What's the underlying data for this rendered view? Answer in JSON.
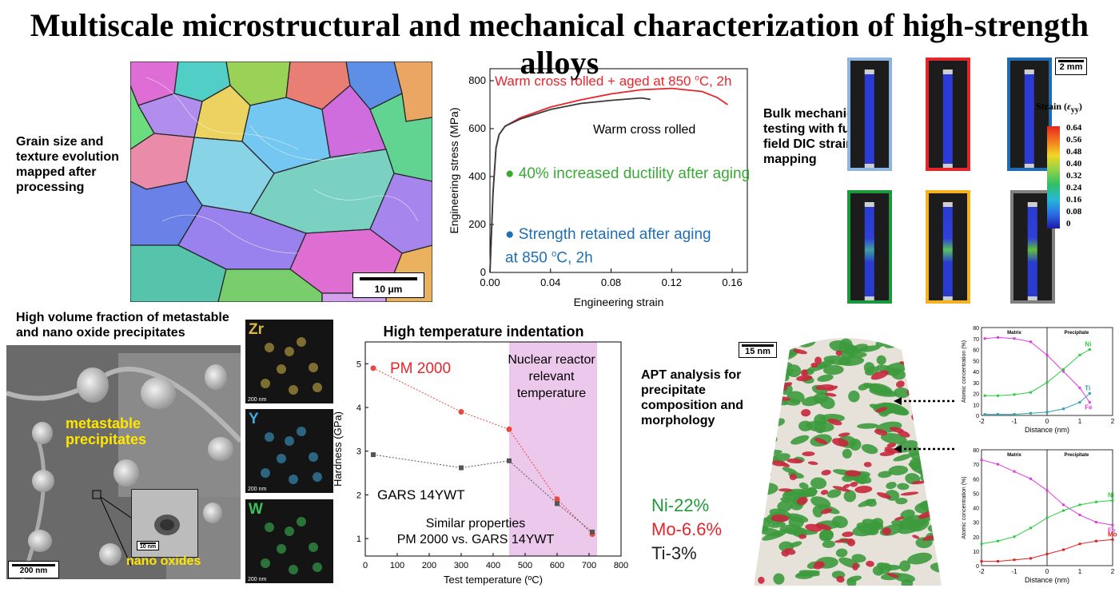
{
  "title": "Multiscale microstructural and mechanical characterization of high-strength alloys",
  "ebsd": {
    "caption": "Grain size and texture evolution mapped after processing",
    "scale_bar": "10 μm"
  },
  "stress_strain": {
    "curve1_label": "Warm cross rolled + aged at 850 ",
    "curve1_label_sup": "o",
    "curve1_label_end": "C, 2h",
    "curve2_label": "Warm cross rolled",
    "note1": "● 40% increased ductility after aging",
    "note2_a": "● Strength retained after aging",
    "note2_b": "at 850 ",
    "note2_sup": "o",
    "note2_c": "C, 2h",
    "colors": {
      "aged": "#e8252a",
      "rolled": "#3a3a3a",
      "green": "#3aa935",
      "blue": "#1f6fb5"
    }
  },
  "dic": {
    "caption": "Bulk mechanical testing with full-field DIC strain mapping",
    "scale_bar": "2 mm",
    "legend_title": "Strain (",
    "legend_symbol": "ε",
    "legend_sub": "yy",
    "legend_close": ")",
    "legend_ticks": [
      "0.64",
      "0.56",
      "0.48",
      "0.40",
      "0.32",
      "0.24",
      "0.16",
      "0.08",
      "0"
    ],
    "frame_colors": [
      "#8fb5df",
      "#e3262b",
      "#1e6db4",
      "#1a9a3c",
      "#f3b21e",
      "#808080"
    ]
  },
  "tem": {
    "caption": "High volume fraction of metastable and nano oxide precipitates",
    "label1": "metastable precipitates",
    "label2": "nano oxides",
    "scale_main": "200 nm",
    "scale_inset": "10 nm"
  },
  "edx": {
    "maps": [
      {
        "element": "Zr",
        "color": "#d6b84a",
        "scale": "200 nm"
      },
      {
        "element": "Y",
        "color": "#3fa8dc",
        "scale": "200 nm"
      },
      {
        "element": "W",
        "color": "#3cc25a",
        "scale": "200 nm"
      }
    ]
  },
  "indentation": {
    "title": "High temperature indentation",
    "shade_label": "Nuclear reactor relevant temperature",
    "series1_label": "PM 2000",
    "series2_label": "GARS 14YWT",
    "note_a": "Similar properties",
    "note_b": "PM 2000 vs. GARS 14YWT"
  },
  "apt": {
    "caption": "APT analysis for precipitate composition and morphology",
    "scale_bar": "15 nm",
    "compositions": [
      {
        "text": "Ni-22%",
        "color": "#1f9a3a"
      },
      {
        "text": "Mo-6.6%",
        "color": "#e3262b"
      },
      {
        "text": "Ti-3%",
        "color": "#222222"
      }
    ]
  },
  "proxigram_top": {
    "ylabel": "Atomic concentration (%)",
    "xlabel": "Distance (nm)",
    "matrix": "Matrix",
    "precipitate": "Precipitate",
    "series_labels": [
      {
        "name": "Ni",
        "color": "#2ecc40"
      },
      {
        "name": "Ti",
        "color": "#2aa0b0"
      },
      {
        "name": "Fe",
        "color": "#e03ce0"
      }
    ]
  },
  "proxigram_bottom": {
    "ylabel": "Atomic concentration (%)",
    "xlabel": "Distance (nm)",
    "matrix": "Matrix",
    "precipitate": "Precipitate",
    "series_labels": [
      {
        "name": "Ni",
        "color": "#2ecc40"
      },
      {
        "name": "Fe",
        "color": "#e03ce0"
      },
      {
        "name": "Mo",
        "color": "#e02020"
      }
    ]
  },
  "chart_data": [
    {
      "type": "line",
      "xlabel": "Engineering strain",
      "ylabel": "Engineering stress (MPa)",
      "xlim": [
        0,
        0.17
      ],
      "ylim": [
        0,
        850
      ],
      "xticks": [
        "0.00",
        "0.04",
        "0.08",
        "0.12",
        "0.16"
      ],
      "yticks": [
        "0",
        "200",
        "400",
        "600",
        "800"
      ],
      "series": [
        {
          "name": "Warm cross rolled + aged at 850 oC, 2h",
          "x": [
            0,
            0.002,
            0.004,
            0.006,
            0.01,
            0.02,
            0.04,
            0.06,
            0.08,
            0.1,
            0.12,
            0.14,
            0.15,
            0.157
          ],
          "y": [
            0,
            330,
            520,
            575,
            610,
            645,
            690,
            720,
            745,
            762,
            768,
            755,
            730,
            700
          ]
        },
        {
          "name": "Warm cross rolled",
          "x": [
            0,
            0.002,
            0.004,
            0.006,
            0.01,
            0.02,
            0.04,
            0.06,
            0.08,
            0.1,
            0.106
          ],
          "y": [
            0,
            330,
            520,
            575,
            610,
            640,
            680,
            705,
            718,
            728,
            722
          ]
        }
      ]
    },
    {
      "type": "scatter",
      "title": "High temperature indentation",
      "xlabel": "Test temperature (ºC)",
      "ylabel": "Hardness (GPa)",
      "xlim": [
        0,
        800
      ],
      "ylim": [
        0.6,
        5.5
      ],
      "xticks": [
        "0",
        "100",
        "200",
        "300",
        "400",
        "500",
        "600",
        "700",
        "800"
      ],
      "yticks": [
        "1",
        "2",
        "3",
        "4",
        "5"
      ],
      "shade_x": [
        450,
        725
      ],
      "series": [
        {
          "name": "PM 2000",
          "x": [
            25,
            300,
            450,
            600,
            710
          ],
          "y": [
            4.9,
            3.9,
            3.5,
            1.9,
            1.1
          ]
        },
        {
          "name": "GARS 14YWT",
          "x": [
            25,
            300,
            450,
            600,
            710
          ],
          "y": [
            2.92,
            2.62,
            2.78,
            1.8,
            1.15
          ]
        }
      ]
    },
    {
      "type": "line",
      "xlabel": "Distance (nm)",
      "ylabel": "Atomic concentration (%)",
      "xlim": [
        -2,
        2
      ],
      "ylim": [
        0,
        80
      ],
      "xticks": [
        "-2",
        "-1",
        "0",
        "1",
        "2"
      ],
      "yticks": [
        "0",
        "10",
        "20",
        "30",
        "40",
        "50",
        "60",
        "70",
        "80"
      ],
      "series": [
        {
          "name": "Fe",
          "x": [
            -1.9,
            -1.5,
            -1,
            -0.5,
            0,
            0.5,
            1,
            1.3
          ],
          "y": [
            70,
            71,
            70,
            67,
            55,
            40,
            25,
            12
          ]
        },
        {
          "name": "Ni",
          "x": [
            -1.9,
            -1.5,
            -1,
            -0.5,
            0,
            0.5,
            1,
            1.3
          ],
          "y": [
            18,
            18,
            19,
            21,
            30,
            42,
            55,
            60
          ]
        },
        {
          "name": "Ti",
          "x": [
            -1.9,
            -1.5,
            -1,
            -0.5,
            0,
            0.5,
            1,
            1.3
          ],
          "y": [
            1,
            1,
            1,
            2,
            3,
            6,
            12,
            20
          ]
        }
      ]
    },
    {
      "type": "line",
      "xlabel": "Distance (nm)",
      "ylabel": "Atomic concentration (%)",
      "xlim": [
        -2,
        2
      ],
      "ylim": [
        0,
        80
      ],
      "xticks": [
        "-2",
        "-1",
        "0",
        "1",
        "2"
      ],
      "yticks": [
        "0",
        "10",
        "20",
        "30",
        "40",
        "50",
        "60",
        "70",
        "80"
      ],
      "series": [
        {
          "name": "Fe",
          "x": [
            -2,
            -1.5,
            -1,
            -0.5,
            0,
            0.5,
            1,
            1.5,
            2
          ],
          "y": [
            73,
            70,
            65,
            60,
            52,
            42,
            35,
            30,
            28
          ]
        },
        {
          "name": "Ni",
          "x": [
            -2,
            -1.5,
            -1,
            -0.5,
            0,
            0.5,
            1,
            1.5,
            2
          ],
          "y": [
            15,
            17,
            20,
            26,
            33,
            38,
            42,
            44,
            45
          ]
        },
        {
          "name": "Mo",
          "x": [
            -2,
            -1.5,
            -1,
            -0.5,
            0,
            0.5,
            1,
            1.5,
            2
          ],
          "y": [
            3,
            3,
            4,
            5,
            8,
            11,
            15,
            17,
            18
          ]
        }
      ]
    }
  ]
}
